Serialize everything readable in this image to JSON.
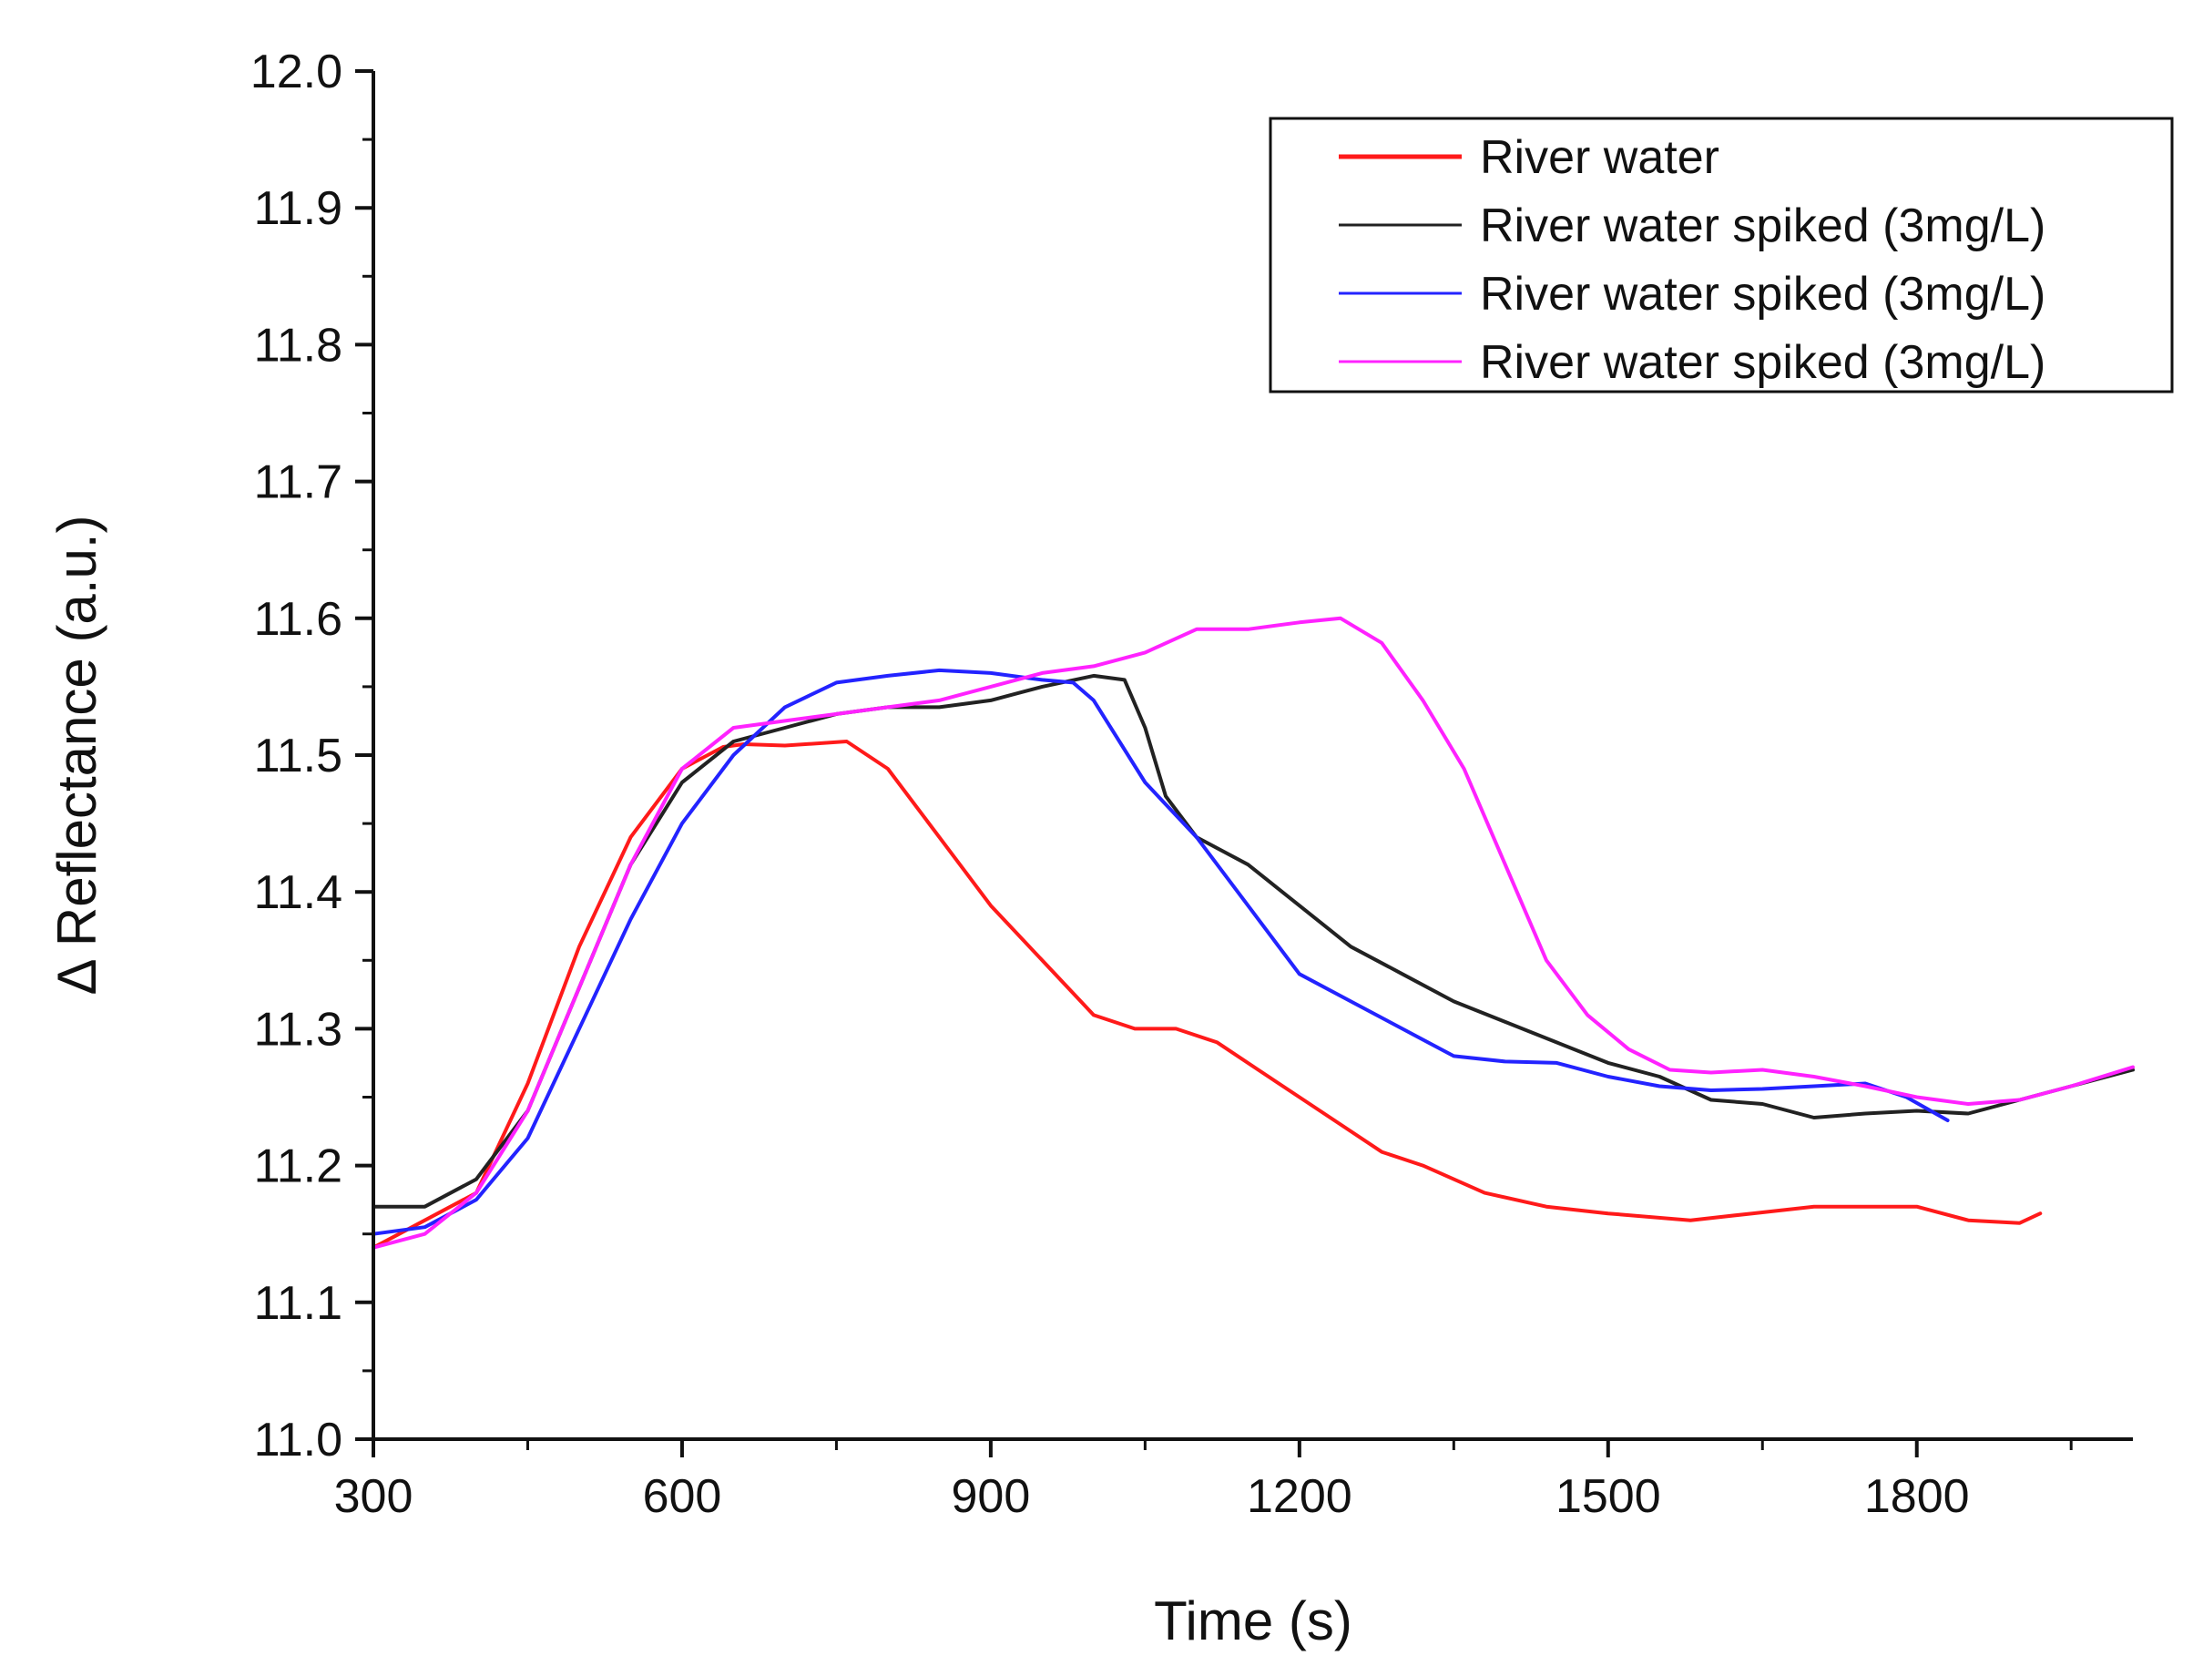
{
  "chart_data": {
    "type": "line",
    "title": "",
    "xlabel": "Time (s)",
    "ylabel": "Δ Reflectance (a.u.)",
    "xlim": [
      300,
      2010
    ],
    "ylim": [
      11.0,
      12.0
    ],
    "xticks": [
      300,
      600,
      900,
      1200,
      1500,
      1800
    ],
    "yticks": [
      11.0,
      11.1,
      11.2,
      11.3,
      11.4,
      11.5,
      11.6,
      11.7,
      11.8,
      11.9,
      12.0
    ],
    "xtick_labels": [
      "300",
      "600",
      "900",
      "1200",
      "1500",
      "1800"
    ],
    "ytick_labels": [
      "11.0",
      "11.1",
      "11.2",
      "11.3",
      "11.4",
      "11.5",
      "11.6",
      "11.7",
      "11.8",
      "11.9",
      "12.0"
    ],
    "legend_position": "top-right",
    "grid": false,
    "series": [
      {
        "name": "River water",
        "color": "#ff1a1a",
        "x": [
          300,
          350,
          400,
          450,
          500,
          550,
          600,
          640,
          660,
          700,
          760,
          800,
          850,
          900,
          950,
          1000,
          1040,
          1080,
          1120,
          1160,
          1200,
          1240,
          1280,
          1320,
          1380,
          1440,
          1500,
          1580,
          1640,
          1700,
          1760,
          1800,
          1850,
          1900,
          1920
        ],
        "y": [
          11.14,
          11.16,
          11.18,
          11.26,
          11.36,
          11.44,
          11.49,
          11.506,
          11.508,
          11.507,
          11.51,
          11.49,
          11.44,
          11.39,
          11.35,
          11.31,
          11.3,
          11.3,
          11.29,
          11.27,
          11.25,
          11.23,
          11.21,
          11.2,
          11.18,
          11.17,
          11.165,
          11.16,
          11.165,
          11.17,
          11.17,
          11.17,
          11.16,
          11.158,
          11.165
        ]
      },
      {
        "name": "River water spiked (3mg/L)",
        "color": "#222222",
        "x": [
          300,
          350,
          400,
          450,
          500,
          550,
          600,
          650,
          700,
          750,
          800,
          850,
          900,
          950,
          1000,
          1030,
          1050,
          1070,
          1100,
          1150,
          1200,
          1250,
          1300,
          1350,
          1400,
          1450,
          1500,
          1550,
          1600,
          1650,
          1700,
          1750,
          1800,
          1850,
          1900,
          1950,
          2010
        ],
        "y": [
          11.17,
          11.17,
          11.19,
          11.24,
          11.33,
          11.42,
          11.48,
          11.51,
          11.52,
          11.53,
          11.535,
          11.535,
          11.54,
          11.55,
          11.558,
          11.555,
          11.52,
          11.47,
          11.44,
          11.42,
          11.39,
          11.36,
          11.34,
          11.32,
          11.305,
          11.29,
          11.275,
          11.265,
          11.248,
          11.245,
          11.235,
          11.238,
          11.24,
          11.238,
          11.248,
          11.258,
          11.27
        ]
      },
      {
        "name": "River water spiked (3mg/L)",
        "color": "#2323ff",
        "x": [
          300,
          350,
          400,
          450,
          500,
          550,
          600,
          650,
          700,
          750,
          800,
          850,
          900,
          950,
          980,
          1000,
          1050,
          1100,
          1150,
          1200,
          1250,
          1300,
          1350,
          1400,
          1450,
          1500,
          1550,
          1600,
          1650,
          1700,
          1750,
          1790,
          1830
        ],
        "y": [
          11.15,
          11.155,
          11.175,
          11.22,
          11.3,
          11.38,
          11.45,
          11.5,
          11.535,
          11.553,
          11.558,
          11.562,
          11.56,
          11.555,
          11.553,
          11.54,
          11.48,
          11.44,
          11.39,
          11.34,
          11.32,
          11.3,
          11.28,
          11.276,
          11.275,
          11.265,
          11.258,
          11.255,
          11.256,
          11.258,
          11.26,
          11.25,
          11.233
        ]
      },
      {
        "name": "River water spiked (3mg/L)",
        "color": "#ff22ff",
        "x": [
          300,
          350,
          400,
          450,
          500,
          550,
          600,
          650,
          700,
          750,
          800,
          850,
          900,
          950,
          1000,
          1050,
          1100,
          1150,
          1200,
          1240,
          1280,
          1320,
          1360,
          1400,
          1440,
          1480,
          1520,
          1560,
          1600,
          1650,
          1700,
          1750,
          1800,
          1850,
          1900,
          1950,
          2010
        ],
        "y": [
          11.14,
          11.15,
          11.18,
          11.24,
          11.33,
          11.42,
          11.49,
          11.52,
          11.525,
          11.53,
          11.535,
          11.54,
          11.55,
          11.56,
          11.565,
          11.575,
          11.592,
          11.592,
          11.597,
          11.6,
          11.582,
          11.54,
          11.49,
          11.42,
          11.35,
          11.31,
          11.285,
          11.27,
          11.268,
          11.27,
          11.265,
          11.258,
          11.25,
          11.245,
          11.248,
          11.258,
          11.272
        ]
      }
    ]
  }
}
